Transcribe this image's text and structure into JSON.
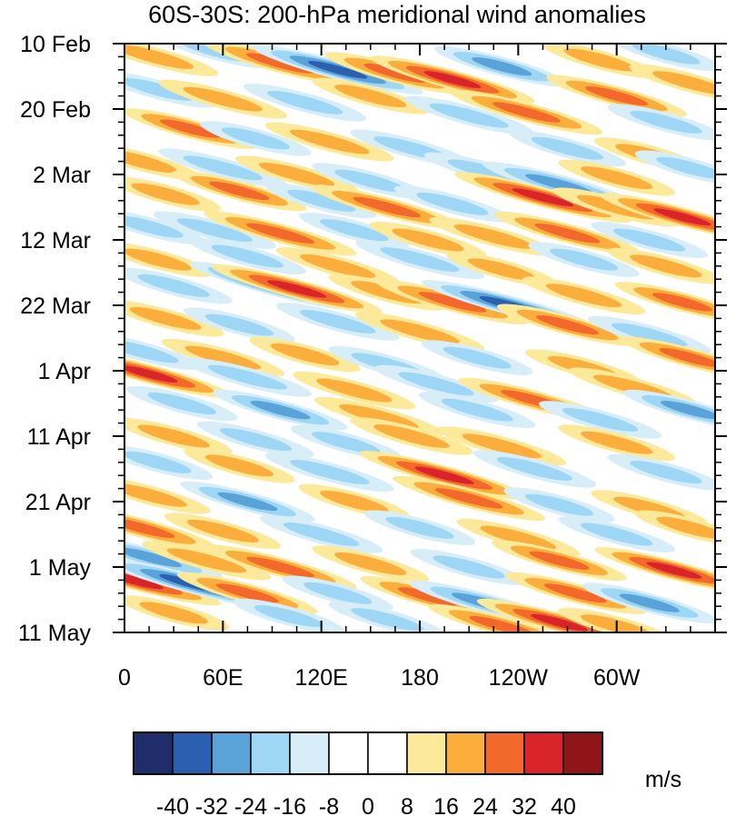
{
  "chart_data": {
    "type": "heatmap",
    "title": "60S-30S: 200-hPa meridional wind anomalies",
    "xlabel": "",
    "ylabel": "",
    "x_ticks": [
      {
        "lon": 0,
        "label": "0"
      },
      {
        "lon": 60,
        "label": "60E"
      },
      {
        "lon": 120,
        "label": "120E"
      },
      {
        "lon": 180,
        "label": "180"
      },
      {
        "lon": 240,
        "label": "120W"
      },
      {
        "lon": 300,
        "label": "60W"
      }
    ],
    "x_range": [
      0,
      360
    ],
    "y_ticks": [
      {
        "day": 0,
        "label": "10 Feb"
      },
      {
        "day": 10,
        "label": "20 Feb"
      },
      {
        "day": 20,
        "label": "2 Mar"
      },
      {
        "day": 30,
        "label": "12 Mar"
      },
      {
        "day": 40,
        "label": "22 Mar"
      },
      {
        "day": 50,
        "label": "1 Apr"
      },
      {
        "day": 60,
        "label": "11 Apr"
      },
      {
        "day": 70,
        "label": "21 Apr"
      },
      {
        "day": 80,
        "label": "1 May"
      },
      {
        "day": 90,
        "label": "11 May"
      }
    ],
    "y_range": [
      0,
      90
    ],
    "colorbar": {
      "unit": "m/s",
      "levels": [
        -40,
        -32,
        -24,
        -16,
        -8,
        0,
        8,
        16,
        24,
        32,
        40
      ],
      "labels": [
        "-40",
        "-32",
        "-24",
        "-16",
        "-8",
        "0",
        "8",
        "16",
        "24",
        "32",
        "40"
      ],
      "colors": [
        "#1f2d6b",
        "#2b5fb0",
        "#5aa3d8",
        "#9ed6f5",
        "#d7eef9",
        "#ffffff",
        "#ffffff",
        "#fce99a",
        "#fbae3b",
        "#f2692b",
        "#d9242a",
        "#8f1518"
      ]
    },
    "anomalies": [
      {
        "lon": 18,
        "day": 2.0,
        "value": 22
      },
      {
        "lon": 55,
        "day": 1.0,
        "value": -18
      },
      {
        "lon": 95,
        "day": 3.0,
        "value": 30
      },
      {
        "lon": 130,
        "day": 4.0,
        "value": -36
      },
      {
        "lon": 165,
        "day": 4.5,
        "value": 26
      },
      {
        "lon": 200,
        "day": 5.5,
        "value": 34
      },
      {
        "lon": 230,
        "day": 3.5,
        "value": -24
      },
      {
        "lon": 290,
        "day": 2.5,
        "value": 18
      },
      {
        "lon": 330,
        "day": 1.5,
        "value": -16
      },
      {
        "lon": 345,
        "day": 6.0,
        "value": 20
      },
      {
        "lon": 20,
        "day": 7.0,
        "value": -18
      },
      {
        "lon": 60,
        "day": 8.5,
        "value": 22
      },
      {
        "lon": 110,
        "day": 9.0,
        "value": -20
      },
      {
        "lon": 150,
        "day": 8.0,
        "value": 18
      },
      {
        "lon": 210,
        "day": 11.0,
        "value": -22
      },
      {
        "lon": 245,
        "day": 10.5,
        "value": 30
      },
      {
        "lon": 300,
        "day": 8.0,
        "value": 26
      },
      {
        "lon": 330,
        "day": 12.0,
        "value": -18
      },
      {
        "lon": 40,
        "day": 13.0,
        "value": 24
      },
      {
        "lon": 80,
        "day": 14.5,
        "value": -16
      },
      {
        "lon": 125,
        "day": 15.0,
        "value": 22
      },
      {
        "lon": 175,
        "day": 16.0,
        "value": -20
      },
      {
        "lon": 270,
        "day": 16.0,
        "value": -18
      },
      {
        "lon": 320,
        "day": 17.0,
        "value": 16
      },
      {
        "lon": 10,
        "day": 18.0,
        "value": 18
      },
      {
        "lon": 60,
        "day": 19.0,
        "value": -22
      },
      {
        "lon": 105,
        "day": 20.0,
        "value": 20
      },
      {
        "lon": 150,
        "day": 21.0,
        "value": -18
      },
      {
        "lon": 220,
        "day": 19.5,
        "value": -20
      },
      {
        "lon": 265,
        "day": 21.5,
        "value": -30
      },
      {
        "lon": 300,
        "day": 20.5,
        "value": 18
      },
      {
        "lon": 345,
        "day": 19.0,
        "value": -16
      },
      {
        "lon": 25,
        "day": 23.0,
        "value": 16
      },
      {
        "lon": 70,
        "day": 22.5,
        "value": 24
      },
      {
        "lon": 120,
        "day": 24.0,
        "value": -16
      },
      {
        "lon": 160,
        "day": 25.0,
        "value": 30
      },
      {
        "lon": 200,
        "day": 24.5,
        "value": -18
      },
      {
        "lon": 255,
        "day": 23.5,
        "value": 38
      },
      {
        "lon": 300,
        "day": 25.0,
        "value": 22
      },
      {
        "lon": 340,
        "day": 26.5,
        "value": 34
      },
      {
        "lon": 15,
        "day": 28.0,
        "value": -16
      },
      {
        "lon": 55,
        "day": 28.5,
        "value": -20
      },
      {
        "lon": 95,
        "day": 29.0,
        "value": 30
      },
      {
        "lon": 140,
        "day": 28.5,
        "value": -16
      },
      {
        "lon": 185,
        "day": 30.0,
        "value": 18
      },
      {
        "lon": 225,
        "day": 29.5,
        "value": 22
      },
      {
        "lon": 270,
        "day": 29.0,
        "value": 28
      },
      {
        "lon": 320,
        "day": 30.0,
        "value": -18
      },
      {
        "lon": 20,
        "day": 33.0,
        "value": 16
      },
      {
        "lon": 75,
        "day": 32.5,
        "value": -18
      },
      {
        "lon": 130,
        "day": 34.0,
        "value": 20
      },
      {
        "lon": 180,
        "day": 33.0,
        "value": -22
      },
      {
        "lon": 230,
        "day": 34.5,
        "value": 16
      },
      {
        "lon": 280,
        "day": 33.0,
        "value": -16
      },
      {
        "lon": 330,
        "day": 34.0,
        "value": 18
      },
      {
        "lon": 30,
        "day": 37.0,
        "value": -18
      },
      {
        "lon": 90,
        "day": 37.0,
        "value": -34
      },
      {
        "lon": 105,
        "day": 37.5,
        "value": 36
      },
      {
        "lon": 160,
        "day": 38.0,
        "value": 18
      },
      {
        "lon": 200,
        "day": 39.5,
        "value": 30
      },
      {
        "lon": 235,
        "day": 40.0,
        "value": -38
      },
      {
        "lon": 280,
        "day": 38.5,
        "value": 20
      },
      {
        "lon": 340,
        "day": 39.5,
        "value": 24
      },
      {
        "lon": 25,
        "day": 42.0,
        "value": 18
      },
      {
        "lon": 70,
        "day": 43.0,
        "value": -16
      },
      {
        "lon": 130,
        "day": 42.5,
        "value": -20
      },
      {
        "lon": 180,
        "day": 44.0,
        "value": 22
      },
      {
        "lon": 270,
        "day": 43.0,
        "value": 26
      },
      {
        "lon": 320,
        "day": 44.5,
        "value": -20
      },
      {
        "lon": 10,
        "day": 47.0,
        "value": -20
      },
      {
        "lon": 60,
        "day": 48.0,
        "value": 20
      },
      {
        "lon": 110,
        "day": 47.5,
        "value": 16
      },
      {
        "lon": 160,
        "day": 49.0,
        "value": -18
      },
      {
        "lon": 215,
        "day": 48.0,
        "value": -16
      },
      {
        "lon": 280,
        "day": 49.5,
        "value": 18
      },
      {
        "lon": 345,
        "day": 48.0,
        "value": 26
      },
      {
        "lon": 15,
        "day": 50.5,
        "value": 34
      },
      {
        "lon": 75,
        "day": 51.0,
        "value": -22
      },
      {
        "lon": 140,
        "day": 53.0,
        "value": 20
      },
      {
        "lon": 190,
        "day": 52.0,
        "value": -20
      },
      {
        "lon": 250,
        "day": 54.5,
        "value": 30
      },
      {
        "lon": 310,
        "day": 52.5,
        "value": 22
      },
      {
        "lon": 345,
        "day": 56.0,
        "value": -24
      },
      {
        "lon": 35,
        "day": 55.0,
        "value": -16
      },
      {
        "lon": 95,
        "day": 56.0,
        "value": -24
      },
      {
        "lon": 155,
        "day": 57.0,
        "value": 22
      },
      {
        "lon": 215,
        "day": 56.0,
        "value": -18
      },
      {
        "lon": 290,
        "day": 57.5,
        "value": -20
      },
      {
        "lon": 30,
        "day": 60.0,
        "value": 18
      },
      {
        "lon": 80,
        "day": 60.5,
        "value": -18
      },
      {
        "lon": 135,
        "day": 61.0,
        "value": -16
      },
      {
        "lon": 175,
        "day": 60.0,
        "value": 20
      },
      {
        "lon": 230,
        "day": 61.5,
        "value": 22
      },
      {
        "lon": 300,
        "day": 61.0,
        "value": 18
      },
      {
        "lon": 20,
        "day": 64.0,
        "value": -16
      },
      {
        "lon": 70,
        "day": 64.5,
        "value": 16
      },
      {
        "lon": 125,
        "day": 65.5,
        "value": -22
      },
      {
        "lon": 195,
        "day": 66.0,
        "value": 36
      },
      {
        "lon": 250,
        "day": 65.0,
        "value": -20
      },
      {
        "lon": 330,
        "day": 65.5,
        "value": -18
      },
      {
        "lon": 15,
        "day": 69.0,
        "value": 20
      },
      {
        "lon": 75,
        "day": 70.0,
        "value": -24
      },
      {
        "lon": 140,
        "day": 70.0,
        "value": 16
      },
      {
        "lon": 210,
        "day": 69.5,
        "value": 30
      },
      {
        "lon": 265,
        "day": 70.5,
        "value": -16
      },
      {
        "lon": 320,
        "day": 71.0,
        "value": 18
      },
      {
        "lon": 10,
        "day": 74.0,
        "value": 30
      },
      {
        "lon": 60,
        "day": 74.5,
        "value": 18
      },
      {
        "lon": 120,
        "day": 75.0,
        "value": -20
      },
      {
        "lon": 180,
        "day": 74.0,
        "value": -16
      },
      {
        "lon": 240,
        "day": 75.5,
        "value": 20
      },
      {
        "lon": 300,
        "day": 75.0,
        "value": -18
      },
      {
        "lon": 345,
        "day": 74.0,
        "value": 16
      },
      {
        "lon": 15,
        "day": 78.5,
        "value": -28
      },
      {
        "lon": 50,
        "day": 79.0,
        "value": 22
      },
      {
        "lon": 95,
        "day": 80.0,
        "value": 30
      },
      {
        "lon": 150,
        "day": 79.5,
        "value": 18
      },
      {
        "lon": 210,
        "day": 80.0,
        "value": -18
      },
      {
        "lon": 265,
        "day": 79.0,
        "value": 24
      },
      {
        "lon": 335,
        "day": 80.5,
        "value": 32
      },
      {
        "lon": 5,
        "day": 82.0,
        "value": 38
      },
      {
        "lon": 40,
        "day": 82.5,
        "value": -38
      },
      {
        "lon": 75,
        "day": 84.0,
        "value": 26
      },
      {
        "lon": 130,
        "day": 84.0,
        "value": -16
      },
      {
        "lon": 185,
        "day": 84.5,
        "value": 24
      },
      {
        "lon": 220,
        "day": 85.5,
        "value": -30
      },
      {
        "lon": 275,
        "day": 84.0,
        "value": 26
      },
      {
        "lon": 320,
        "day": 85.5,
        "value": -24
      },
      {
        "lon": 30,
        "day": 87.0,
        "value": 16
      },
      {
        "lon": 100,
        "day": 87.5,
        "value": -16
      },
      {
        "lon": 160,
        "day": 88.0,
        "value": -18
      },
      {
        "lon": 230,
        "day": 89.0,
        "value": 28
      },
      {
        "lon": 265,
        "day": 88.5,
        "value": 34
      },
      {
        "lon": 300,
        "day": 89.0,
        "value": 18
      }
    ]
  }
}
